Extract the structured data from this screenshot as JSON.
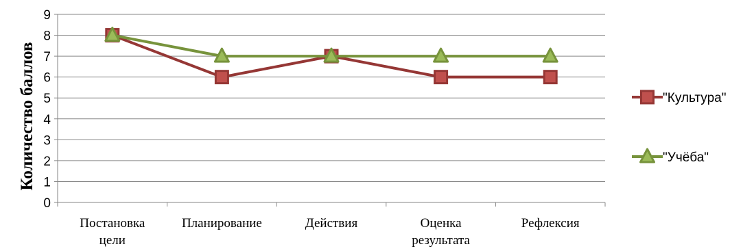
{
  "chart_data": {
    "type": "line",
    "categories": [
      [
        "Постановка",
        "цели"
      ],
      [
        "Планирование"
      ],
      [
        "Действия"
      ],
      [
        "Оценка",
        "результата"
      ],
      [
        "Рефлексия"
      ]
    ],
    "ylabel": "Количество баллов",
    "ylim": [
      0,
      9
    ],
    "yticks": [
      0,
      1,
      2,
      3,
      4,
      5,
      6,
      7,
      8,
      9
    ],
    "grid": true,
    "legend_position": "right",
    "series": [
      {
        "name": "\"Культура\"",
        "values": [
          8,
          6,
          7,
          6,
          6
        ],
        "color": "#953735",
        "marker": "square",
        "marker_fill": "#c0504d"
      },
      {
        "name": "\"Учёба\"",
        "values": [
          8,
          7,
          7,
          7,
          7
        ],
        "color": "#77933c",
        "marker": "triangle",
        "marker_fill": "#9bbb59"
      }
    ]
  }
}
